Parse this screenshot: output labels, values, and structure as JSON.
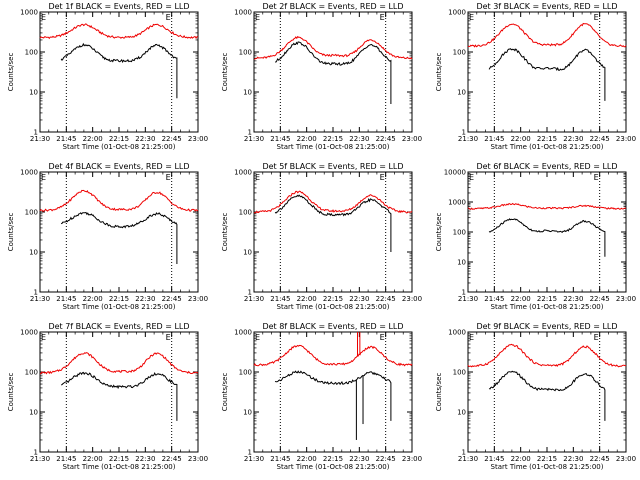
{
  "chart_data": [
    {
      "type": "line",
      "title": "Det 1f BLACK = Events, RED = LLD",
      "ylabel": "Counts/sec",
      "xlabel": "Start Time (01-Oct-08 21:25:00)",
      "ylim": [
        1,
        1000
      ],
      "ytick_labels": [
        "1",
        "10",
        "100",
        "1000"
      ],
      "red": {
        "base": 230,
        "peak1": 480,
        "trough": 230,
        "peak2": 480
      },
      "black": {
        "base": 55,
        "peak1": 150,
        "trough": 65,
        "peak2": 145,
        "end": 7
      },
      "markers": [
        "E",
        "E"
      ],
      "spikes": []
    },
    {
      "type": "line",
      "title": "Det 2f BLACK = Events, RED = LLD",
      "ylabel": "Counts/sec",
      "xlabel": "Start Time (01-Oct-08 21:25:00)",
      "ylim": [
        1,
        1000
      ],
      "ytick_labels": [
        "1",
        "10",
        "100",
        "1000"
      ],
      "red": {
        "base": 70,
        "peak1": 230,
        "trough": 95,
        "peak2": 200
      },
      "black": {
        "base": 45,
        "peak1": 170,
        "trough": 55,
        "peak2": 150,
        "end": 5
      },
      "markers": [
        "E",
        "E"
      ],
      "spikes": []
    },
    {
      "type": "line",
      "title": "Det 3f BLACK = Events, RED = LLD",
      "ylabel": "Counts/sec",
      "xlabel": "Start Time (01-Oct-08 21:25:00)",
      "ylim": [
        1,
        1000
      ],
      "ytick_labels": [
        "1",
        "10",
        "100",
        "1000"
      ],
      "red": {
        "base": 140,
        "peak1": 500,
        "trough": 160,
        "peak2": 500
      },
      "black": {
        "base": 30,
        "peak1": 120,
        "trough": 50,
        "peak2": 110,
        "end": 6
      },
      "markers": [
        "E",
        "E"
      ],
      "spikes": []
    },
    {
      "type": "line",
      "title": "Det 4f BLACK = Events, RED = LLD",
      "ylabel": "Counts/sec",
      "xlabel": "Start Time (01-Oct-08 21:25:00)",
      "ylim": [
        1,
        1000
      ],
      "ytick_labels": [
        "1",
        "10",
        "100",
        "1000"
      ],
      "red": {
        "base": 110,
        "peak1": 340,
        "trough": 120,
        "peak2": 310
      },
      "black": {
        "base": 45,
        "peak1": 95,
        "trough": 40,
        "peak2": 90,
        "end": 5
      },
      "markers": [
        "E",
        "E"
      ],
      "spikes": []
    },
    {
      "type": "line",
      "title": "Det 5f BLACK = Events, RED = LLD",
      "ylabel": "Counts/sec",
      "xlabel": "Start Time (01-Oct-08 21:25:00)",
      "ylim": [
        1,
        1000
      ],
      "ytick_labels": [
        "1",
        "10",
        "100",
        "1000"
      ],
      "red": {
        "base": 100,
        "peak1": 320,
        "trough": 110,
        "peak2": 260
      },
      "black": {
        "base": 80,
        "peak1": 250,
        "trough": 90,
        "peak2": 200,
        "end": 10
      },
      "markers": [
        "E",
        "E"
      ],
      "spikes": []
    },
    {
      "type": "line",
      "title": "Det 6f BLACK = Events, RED = LLD",
      "ylabel": "Counts/sec",
      "xlabel": "Start Time (01-Oct-08 21:25:00)",
      "ylim": [
        1,
        10000
      ],
      "ytick_labels": [
        "1",
        "10",
        "100",
        "1000",
        "10000"
      ],
      "red": {
        "base": 600,
        "peak1": 850,
        "trough": 650,
        "peak2": 750
      },
      "black": {
        "base": 80,
        "peak1": 270,
        "trough": 150,
        "peak2": 230,
        "end": 15
      },
      "markers": [
        "E",
        "E"
      ],
      "spikes": []
    },
    {
      "type": "line",
      "title": "Det 7f BLACK = Events, RED = LLD",
      "ylabel": "Counts/sec",
      "xlabel": "Start Time (01-Oct-08 21:25:00)",
      "ylim": [
        1,
        1000
      ],
      "ytick_labels": [
        "1",
        "10",
        "100",
        "1000"
      ],
      "red": {
        "base": 95,
        "peak1": 300,
        "trough": 110,
        "peak2": 290
      },
      "black": {
        "base": 40,
        "peak1": 95,
        "trough": 45,
        "peak2": 90,
        "end": 6
      },
      "markers": [
        "E",
        "E"
      ],
      "spikes": []
    },
    {
      "type": "line",
      "title": "Det 8f BLACK = Events, RED = LLD",
      "ylabel": "Counts/sec",
      "xlabel": "Start Time (01-Oct-08 21:25:00)",
      "ylim": [
        1,
        1000
      ],
      "ytick_labels": [
        "1",
        "10",
        "100",
        "1000"
      ],
      "red": {
        "base": 150,
        "peak1": 450,
        "trough": 160,
        "peak2": 420
      },
      "black": {
        "base": 50,
        "peak1": 100,
        "trough": 55,
        "peak2": 95,
        "end": 6
      },
      "markers": [
        "E",
        "E"
      ],
      "spikes": [
        {
          "t": 0.655,
          "series": "red",
          "to": 1000
        },
        {
          "t": 0.67,
          "series": "red",
          "to": 1000
        },
        {
          "t": 0.648,
          "series": "black",
          "to": 2
        },
        {
          "t": 0.69,
          "series": "black",
          "to": 5
        }
      ]
    },
    {
      "type": "line",
      "title": "Det 9f BLACK = Events, RED = LLD",
      "ylabel": "Counts/sec",
      "xlabel": "Start Time (01-Oct-08 21:25:00)",
      "ylim": [
        1,
        1000
      ],
      "ytick_labels": [
        "1",
        "10",
        "100",
        "1000"
      ],
      "red": {
        "base": 140,
        "peak1": 470,
        "trough": 150,
        "peak2": 430
      },
      "black": {
        "base": 30,
        "peak1": 100,
        "trough": 45,
        "peak2": 90,
        "end": 6
      },
      "markers": [
        "E",
        "E"
      ],
      "spikes": []
    }
  ],
  "x_tick_labels": [
    "21:30",
    "21:45",
    "22:00",
    "22:15",
    "22:30",
    "22:45",
    "23:00"
  ],
  "x_range_minutes": [
    0,
    90
  ],
  "x_ticks_minutes": [
    0,
    15,
    30,
    45,
    60,
    75,
    90
  ],
  "vline_minutes": [
    15,
    75
  ],
  "black_start_minutes": 12,
  "black_end_minutes": 78,
  "colors": {
    "red": "#ee0000",
    "black": "#000000",
    "axes": "#000000"
  }
}
